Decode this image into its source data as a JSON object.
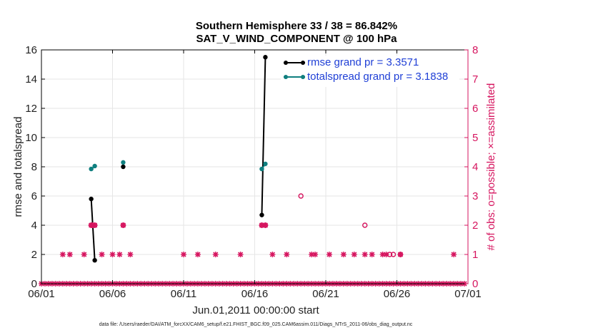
{
  "title": "Southern Hemisphere 33 / 38 = 86.842%",
  "subtitle": "SAT_V_WIND_COMPONENT @ 100 hPa",
  "footer": "data file: /Users/raeder/DAI/ATM_forcXX/CAM6_setup/f.e21.FHIST_BGC.f09_025.CAM6assim.011/Diags_NTrS_2011-06/obs_diag_output.nc",
  "colors": {
    "rmse": "#000000",
    "totalspread": "#0f7f7f",
    "obs": "#d6155f",
    "legend_text": "#1f3fd6",
    "grid": "#e6e6e6"
  },
  "chart_data": {
    "type": "line",
    "xlabel": "Jun.01,2011 00:00:00 start",
    "ylabel_left": "rmse and totalspread",
    "ylabel_right": "# of obs: o=possible; ×=assimilated",
    "xlim": [
      0,
      30
    ],
    "ylim_left": [
      0,
      16
    ],
    "ylim_right": [
      0,
      8
    ],
    "x_ticks": [
      {
        "v": 0,
        "label": "06/01"
      },
      {
        "v": 5,
        "label": "06/06"
      },
      {
        "v": 10,
        "label": "06/11"
      },
      {
        "v": 15,
        "label": "06/16"
      },
      {
        "v": 20,
        "label": "06/21"
      },
      {
        "v": 25,
        "label": "06/26"
      },
      {
        "v": 30,
        "label": "07/01"
      }
    ],
    "y_ticks_left": [
      "0",
      "2",
      "4",
      "6",
      "8",
      "10",
      "12",
      "14",
      "16"
    ],
    "y_ticks_right": [
      "0",
      "1",
      "2",
      "3",
      "4",
      "5",
      "6",
      "7",
      "8"
    ],
    "grid": true,
    "legend_position": "top-right",
    "legend": [
      "rmse grand pr = 3.3571",
      "totalspread grand pr = 3.1838"
    ],
    "series": [
      {
        "name": "rmse",
        "segments": [
          [
            [
              3.5,
              5.8
            ],
            [
              3.75,
              1.6
            ]
          ],
          [
            [
              5.75,
              8.0
            ]
          ],
          [
            [
              15.5,
              4.7
            ],
            [
              15.75,
              15.5
            ]
          ]
        ]
      },
      {
        "name": "totalspread",
        "segments": [
          [
            [
              3.5,
              7.85
            ],
            [
              3.75,
              8.05
            ]
          ],
          [
            [
              5.75,
              8.3
            ]
          ],
          [
            [
              15.5,
              7.85
            ],
            [
              15.75,
              8.2
            ]
          ]
        ]
      }
    ],
    "obs_assimilated": [
      [
        0,
        0
      ],
      [
        0.25,
        0
      ],
      [
        0.5,
        0
      ],
      [
        0.75,
        0
      ],
      [
        1,
        0
      ],
      [
        1.25,
        0
      ],
      [
        1.5,
        0
      ],
      [
        1.75,
        0
      ],
      [
        2,
        0
      ],
      [
        2.25,
        0
      ],
      [
        2.5,
        0
      ],
      [
        2.75,
        0
      ],
      [
        3,
        0
      ],
      [
        3.25,
        0
      ],
      [
        3.5,
        0
      ],
      [
        3.75,
        0
      ],
      [
        4,
        0
      ],
      [
        4.25,
        0
      ],
      [
        4.5,
        0
      ],
      [
        4.75,
        0
      ],
      [
        5,
        0
      ],
      [
        5.25,
        0
      ],
      [
        5.5,
        0
      ],
      [
        5.75,
        0
      ],
      [
        6,
        0
      ],
      [
        6.25,
        0
      ],
      [
        6.5,
        0
      ],
      [
        6.75,
        0
      ],
      [
        7,
        0
      ],
      [
        7.25,
        0
      ],
      [
        7.5,
        0
      ],
      [
        7.75,
        0
      ],
      [
        8,
        0
      ],
      [
        8.25,
        0
      ],
      [
        8.5,
        0
      ],
      [
        8.75,
        0
      ],
      [
        9,
        0
      ],
      [
        9.25,
        0
      ],
      [
        9.5,
        0
      ],
      [
        9.75,
        0
      ],
      [
        10,
        0
      ],
      [
        10.25,
        0
      ],
      [
        10.5,
        0
      ],
      [
        10.75,
        0
      ],
      [
        11,
        0
      ],
      [
        11.25,
        0
      ],
      [
        11.5,
        0
      ],
      [
        11.75,
        0
      ],
      [
        12,
        0
      ],
      [
        12.25,
        0
      ],
      [
        12.5,
        0
      ],
      [
        12.75,
        0
      ],
      [
        13,
        0
      ],
      [
        13.25,
        0
      ],
      [
        13.5,
        0
      ],
      [
        13.75,
        0
      ],
      [
        14,
        0
      ],
      [
        14.25,
        0
      ],
      [
        14.5,
        0
      ],
      [
        14.75,
        0
      ],
      [
        15,
        0
      ],
      [
        15.25,
        0
      ],
      [
        15.5,
        0
      ],
      [
        15.75,
        0
      ],
      [
        16,
        0
      ],
      [
        16.25,
        0
      ],
      [
        16.5,
        0
      ],
      [
        16.75,
        0
      ],
      [
        17,
        0
      ],
      [
        17.25,
        0
      ],
      [
        17.5,
        0
      ],
      [
        17.75,
        0
      ],
      [
        18,
        0
      ],
      [
        18.25,
        0
      ],
      [
        18.5,
        0
      ],
      [
        18.75,
        0
      ],
      [
        19,
        0
      ],
      [
        19.25,
        0
      ],
      [
        19.5,
        0
      ],
      [
        19.75,
        0
      ],
      [
        20,
        0
      ],
      [
        20.25,
        0
      ],
      [
        20.5,
        0
      ],
      [
        20.75,
        0
      ],
      [
        21,
        0
      ],
      [
        21.25,
        0
      ],
      [
        21.5,
        0
      ],
      [
        21.75,
        0
      ],
      [
        22,
        0
      ],
      [
        22.25,
        0
      ],
      [
        22.5,
        0
      ],
      [
        22.75,
        0
      ],
      [
        23,
        0
      ],
      [
        23.25,
        0
      ],
      [
        23.5,
        0
      ],
      [
        23.75,
        0
      ],
      [
        24,
        0
      ],
      [
        24.25,
        0
      ],
      [
        24.5,
        0
      ],
      [
        24.75,
        0
      ],
      [
        25,
        0
      ],
      [
        25.25,
        0
      ],
      [
        25.5,
        0
      ],
      [
        25.75,
        0
      ],
      [
        26,
        0
      ],
      [
        26.25,
        0
      ],
      [
        26.5,
        0
      ],
      [
        26.75,
        0
      ],
      [
        27,
        0
      ],
      [
        27.25,
        0
      ],
      [
        27.5,
        0
      ],
      [
        27.75,
        0
      ],
      [
        28,
        0
      ],
      [
        28.25,
        0
      ],
      [
        28.5,
        0
      ],
      [
        28.75,
        0
      ],
      [
        29,
        0
      ],
      [
        29.25,
        0
      ],
      [
        29.5,
        0
      ],
      [
        29.75,
        0
      ],
      [
        1.5,
        1
      ],
      [
        2,
        1
      ],
      [
        3,
        1
      ],
      [
        3.5,
        2
      ],
      [
        3.6,
        2
      ],
      [
        3.75,
        2
      ],
      [
        4.25,
        1
      ],
      [
        5,
        1
      ],
      [
        5.5,
        1
      ],
      [
        5.75,
        2
      ],
      [
        6.25,
        1
      ],
      [
        10,
        1
      ],
      [
        11,
        1
      ],
      [
        12.25,
        1
      ],
      [
        14,
        1
      ],
      [
        15.5,
        2
      ],
      [
        15.75,
        2
      ],
      [
        16.25,
        1
      ],
      [
        17.25,
        1
      ],
      [
        19,
        1
      ],
      [
        19.25,
        1
      ],
      [
        20.25,
        1
      ],
      [
        21.25,
        1
      ],
      [
        22,
        1
      ],
      [
        22.75,
        1
      ],
      [
        23.25,
        1
      ],
      [
        24,
        1
      ],
      [
        24.25,
        1
      ],
      [
        25.25,
        1
      ],
      [
        29,
        1
      ]
    ],
    "obs_possible": [
      [
        3.5,
        2
      ],
      [
        3.6,
        2
      ],
      [
        3.75,
        2
      ],
      [
        5.75,
        2
      ],
      [
        15.5,
        2
      ],
      [
        15.75,
        2
      ],
      [
        18.25,
        3
      ],
      [
        22.75,
        2
      ],
      [
        24.5,
        1
      ],
      [
        24.75,
        1
      ],
      [
        25.25,
        1
      ]
    ]
  }
}
